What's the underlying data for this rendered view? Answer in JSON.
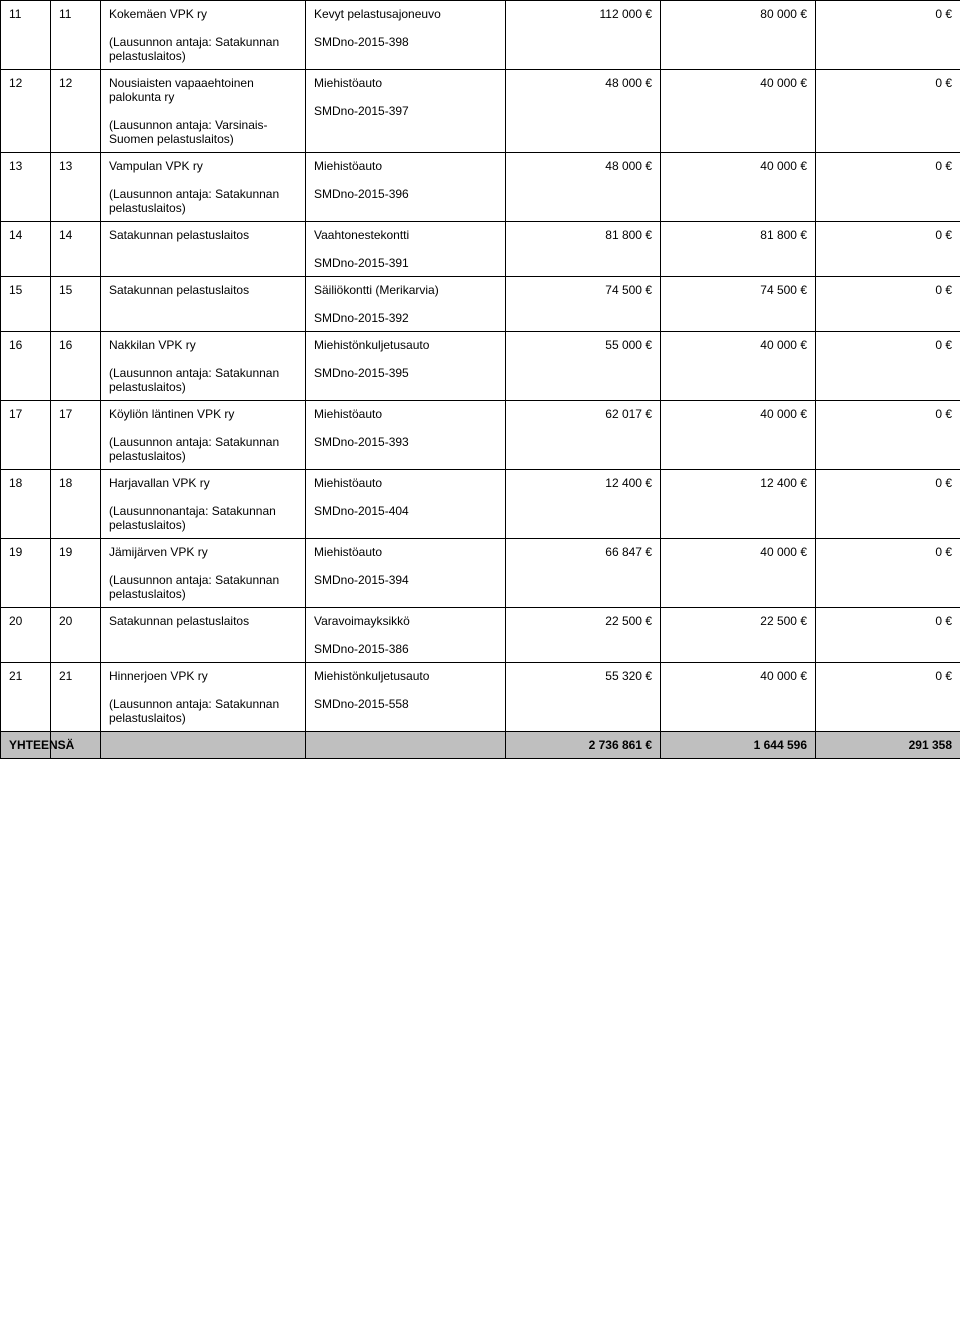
{
  "rows": [
    {
      "c1": "11",
      "c2": "11",
      "applicant": "Kokemäen VPK ry",
      "note": "(Lausunnon antaja: Satakunnan pelastuslaitos)",
      "item": "Kevyt pelastusajoneuvo",
      "smd": "SMDno-2015-398",
      "amt1": "112 000 €",
      "amt2": "80 000 €",
      "amt3": "0 €"
    },
    {
      "c1": "12",
      "c2": "12",
      "applicant": "Nousiaisten vapaaehtoinen palokunta ry",
      "note": "(Lausunnon antaja: Varsinais-Suomen pelastuslaitos)",
      "item": "Miehistöauto",
      "smd": "SMDno-2015-397",
      "amt1": "48 000 €",
      "amt2": "40 000 €",
      "amt3": "0 €"
    },
    {
      "c1": "13",
      "c2": "13",
      "applicant": "Vampulan VPK ry",
      "note": "(Lausunnon antaja: Satakunnan pelastuslaitos)",
      "item": "Miehistöauto",
      "smd": "SMDno-2015-396",
      "amt1": "48 000 €",
      "amt2": "40 000 €",
      "amt3": "0 €"
    },
    {
      "c1": "14",
      "c2": "14",
      "applicant": "Satakunnan pelastuslaitos",
      "note": "",
      "item": "Vaahtonestekontti",
      "smd": "SMDno-2015-391",
      "amt1": "81 800 €",
      "amt2": "81 800 €",
      "amt3": "0 €"
    },
    {
      "c1": "15",
      "c2": "15",
      "applicant": "Satakunnan pelastuslaitos",
      "note": "",
      "item": "Säiliökontti (Merikarvia)",
      "smd": "SMDno-2015-392",
      "amt1": "74 500 €",
      "amt2": "74 500 €",
      "amt3": "0 €"
    },
    {
      "c1": "16",
      "c2": "16",
      "applicant": "Nakkilan VPK ry",
      "note": "(Lausunnon antaja: Satakunnan pelastuslaitos)",
      "item": "Miehistönkuljetusauto",
      "smd": "SMDno-2015-395",
      "amt1": "55 000 €",
      "amt2": "40 000 €",
      "amt3": "0 €"
    },
    {
      "c1": "17",
      "c2": "17",
      "applicant": "Köyliön läntinen VPK ry",
      "note": "(Lausunnon antaja: Satakunnan pelastuslaitos)",
      "item": "Miehistöauto",
      "smd": "SMDno-2015-393",
      "amt1": "62 017 €",
      "amt2": "40 000 €",
      "amt3": "0 €"
    },
    {
      "c1": "18",
      "c2": "18",
      "applicant": "Harjavallan VPK ry",
      "note": "(Lausunnonantaja: Satakunnan pelastuslaitos)",
      "item": "Miehistöauto",
      "smd": "SMDno-2015-404",
      "amt1": "12 400 €",
      "amt2": "12 400 €",
      "amt3": "0 €"
    },
    {
      "c1": "19",
      "c2": "19",
      "applicant": "Jämijärven VPK ry",
      "note": "(Lausunnon antaja: Satakunnan pelastuslaitos)",
      "item": "Miehistöauto",
      "smd": "SMDno-2015-394",
      "amt1": "66 847 €",
      "amt2": "40 000 €",
      "amt3": "0 €"
    },
    {
      "c1": "20",
      "c2": "20",
      "applicant": "Satakunnan pelastuslaitos",
      "note": "",
      "item": "Varavoimayksikkö",
      "smd": "SMDno-2015-386",
      "amt1": "22 500 €",
      "amt2": "22 500 €",
      "amt3": "0 €"
    },
    {
      "c1": "21",
      "c2": "21",
      "applicant": "Hinnerjoen VPK ry",
      "note": "(Lausunnon antaja: Satakunnan pelastuslaitos)",
      "item": "Miehistönkuljetusauto",
      "smd": "SMDno-2015-558",
      "amt1": "55 320 €",
      "amt2": "40 000 €",
      "amt3": "0 €"
    }
  ],
  "total": {
    "label": "YHTEENSÄ",
    "amt1": "2 736 861 €",
    "amt2": "1 644 596",
    "amt3": "291 358"
  }
}
